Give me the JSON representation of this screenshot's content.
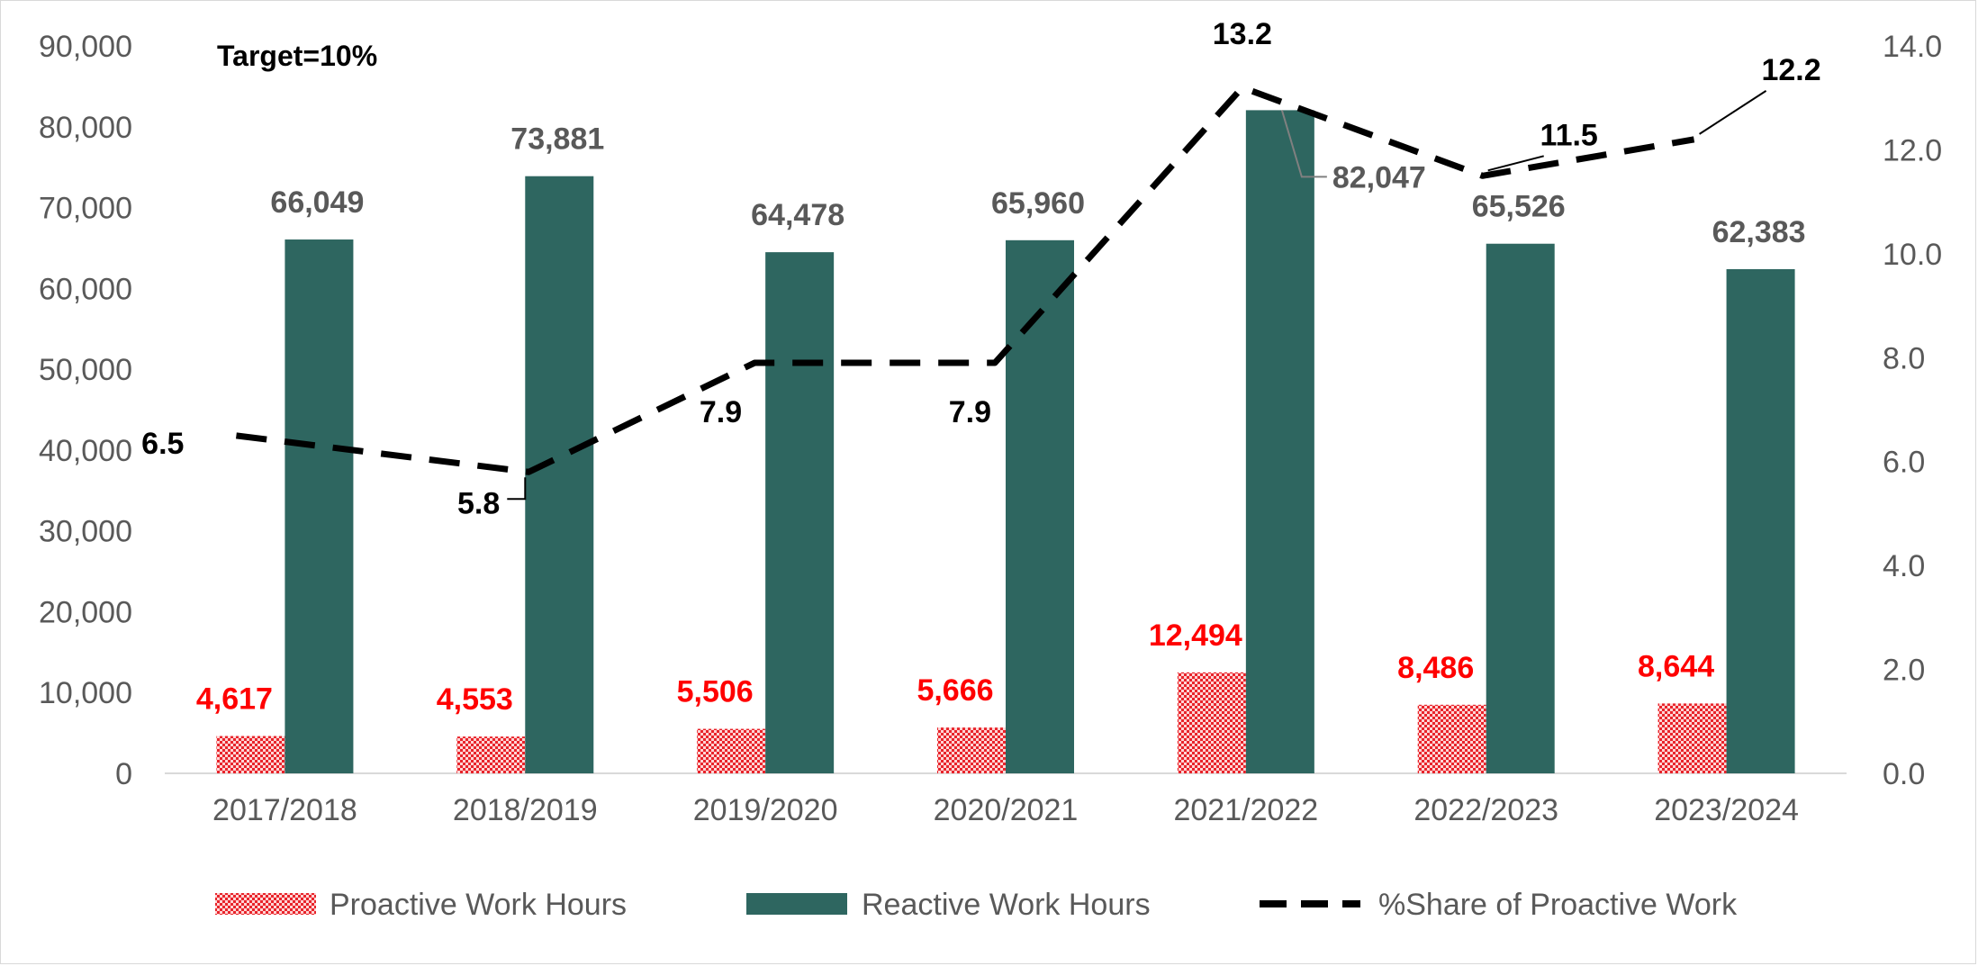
{
  "chart_data": {
    "type": "bar",
    "annotation": "Target=10%",
    "categories": [
      "2017/2018",
      "2018/2019",
      "2019/2020",
      "2020/2021",
      "2021/2022",
      "2022/2023",
      "2023/2024"
    ],
    "series": [
      {
        "name": "Proactive Work Hours",
        "type": "bar",
        "axis": "left",
        "color": "#e8242b",
        "pattern": "checker",
        "values": [
          4617,
          4553,
          5506,
          5666,
          12494,
          8486,
          8644
        ],
        "labels": [
          "4,617",
          "4,553",
          "5,506",
          "5,666",
          "12,494",
          "8,486",
          "8,644"
        ],
        "label_color": "#ff0000"
      },
      {
        "name": "Reactive Work Hours",
        "type": "bar",
        "axis": "left",
        "color": "#2e6660",
        "values": [
          66049,
          73881,
          64478,
          65960,
          82047,
          65526,
          62383
        ],
        "labels": [
          "66,049",
          "73,881",
          "64,478",
          "65,960",
          "82,047",
          "65,526",
          "62,383"
        ],
        "label_color": "#595959"
      },
      {
        "name": "%Share of Proactive Work",
        "type": "line",
        "axis": "right",
        "style": "dashed",
        "color": "#000000",
        "values": [
          6.5,
          5.8,
          7.9,
          7.9,
          13.2,
          11.5,
          12.2
        ],
        "labels": [
          "6.5",
          "5.8",
          "7.9",
          "7.9",
          "13.2",
          "11.5",
          "12.2"
        ],
        "label_color": "#000000"
      }
    ],
    "y_left": {
      "ylim": [
        0,
        90000
      ],
      "ticks": [
        "0",
        "10,000",
        "20,000",
        "30,000",
        "40,000",
        "50,000",
        "60,000",
        "70,000",
        "80,000",
        "90,000"
      ]
    },
    "y_right": {
      "ylim": [
        0,
        14
      ],
      "ticks": [
        "0.0",
        "2.0",
        "4.0",
        "6.0",
        "8.0",
        "10.0",
        "12.0",
        "14.0"
      ]
    },
    "grid": false,
    "legend": "bottom"
  }
}
